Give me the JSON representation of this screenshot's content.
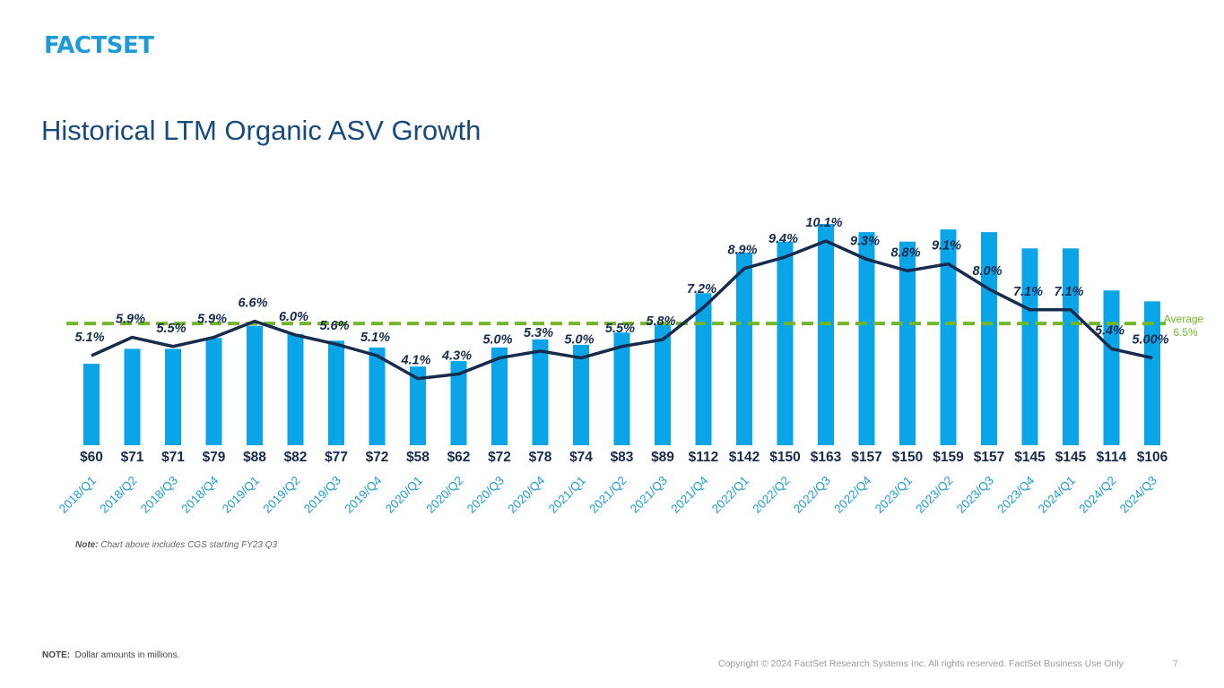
{
  "logo": "FACTSET",
  "title": "Historical LTM Organic ASV Growth",
  "note_chart_label": "Note:",
  "note_chart_text": "Chart above includes CGS starting FY23 Q3",
  "footnote_label": "NOTE:",
  "footnote_text": "Dollar amounts in millions.",
  "copyright": "Copyright © 2024 FactSet Research Systems Inc. All rights reserved. FactSet Business Use Only",
  "page_number": "7",
  "colors": {
    "bar": "#0aa5e8",
    "line": "#172b4d",
    "average": "#72b62b",
    "title": "#174a7e",
    "logo": "#1d9bd8"
  },
  "chart_data": {
    "type": "bar",
    "categories": [
      "2018/Q1",
      "2018/Q2",
      "2018/Q3",
      "2018/Q4",
      "2019/Q1",
      "2019/Q2",
      "2019/Q3",
      "2019/Q4",
      "2020/Q1",
      "2020/Q2",
      "2020/Q3",
      "2020/Q4",
      "2021/Q1",
      "2021/Q2",
      "2021/Q3",
      "2021/Q4",
      "2022/Q1",
      "2022/Q2",
      "2022/Q3",
      "2022/Q4",
      "2023/Q1",
      "2023/Q2",
      "2023/Q3",
      "2023/Q4",
      "2024/Q1",
      "2024/Q2",
      "2024/Q3"
    ],
    "bar_values": [
      60,
      71,
      71,
      79,
      88,
      82,
      77,
      72,
      58,
      62,
      72,
      78,
      74,
      83,
      89,
      112,
      142,
      150,
      163,
      157,
      150,
      159,
      157,
      145,
      145,
      114,
      106
    ],
    "bar_labels": [
      "$60",
      "$71",
      "$71",
      "$79",
      "$88",
      "$82",
      "$77",
      "$72",
      "$58",
      "$62",
      "$72",
      "$78",
      "$74",
      "$83",
      "$89",
      "$112",
      "$142",
      "$150",
      "$163",
      "$157",
      "$150",
      "$159",
      "$157",
      "$145",
      "$145",
      "$114",
      "$106"
    ],
    "growth_values": [
      5.1,
      5.9,
      5.5,
      5.9,
      6.6,
      6.0,
      5.6,
      5.1,
      4.1,
      4.3,
      5.0,
      5.3,
      5.0,
      5.5,
      5.8,
      7.2,
      8.9,
      9.4,
      10.1,
      9.3,
      8.8,
      9.1,
      8.0,
      7.1,
      7.1,
      5.4,
      5.0
    ],
    "growth_labels": [
      "5.1%",
      "5.9%",
      "5.5%",
      "5.9%",
      "6.6%",
      "6.0%",
      "5.6%",
      "5.1%",
      "4.1%",
      "4.3%",
      "5.0%",
      "5.3%",
      "5.0%",
      "5.5%",
      "5.8%",
      "7.2%",
      "8.9%",
      "9.4%",
      "10.1%",
      "9.3%",
      "8.8%",
      "9.1%",
      "8.0%",
      "7.1%",
      "7.1%",
      "5.4%",
      "5.00%"
    ],
    "average_value": 6.5,
    "average_label": "Average",
    "average_value_label": "6.5%",
    "grid": false
  }
}
